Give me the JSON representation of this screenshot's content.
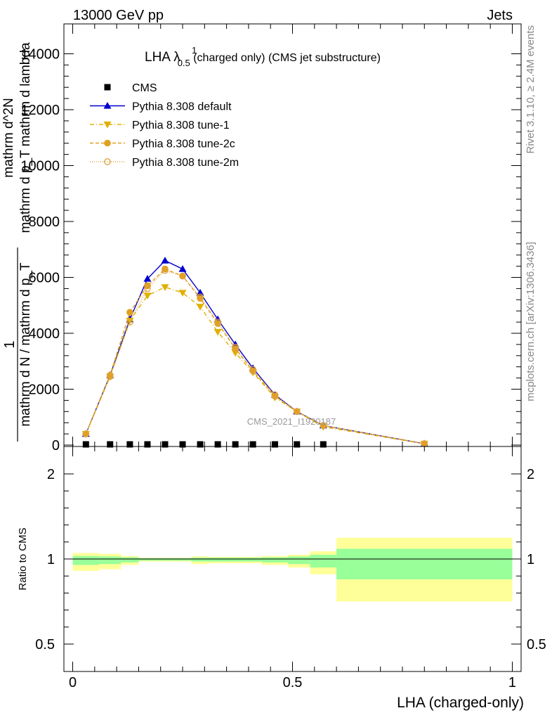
{
  "header": {
    "energy_label": "13000 GeV pp",
    "category_label": "Jets"
  },
  "side_labels": {
    "rivet": "Rivet 3.1.10, ≥ 2.4M events",
    "mcplots": "mcplots.cern.ch [arXiv:1306.3436]"
  },
  "chart_data": [
    {
      "type": "line",
      "title": "LHA λ",
      "title_sup": "1",
      "title_sub": "0.5",
      "title_suffix": " (charged only) (CMS jet substructure)",
      "ylabel_numerator": "mathrm d^2N",
      "ylabel_denominator_1": "mathrm d N / mathrm d p_T",
      "ylabel_denominator_2": "mathrm d p_T mathrm d lambda",
      "ylabel_lead": "1",
      "watermark": "CMS_2021_I1920187",
      "ylim": [
        0,
        14000
      ],
      "yticks": [
        0,
        2000,
        4000,
        6000,
        8000,
        10000,
        12000,
        14000
      ],
      "ytick_labels": [
        "0",
        "2000",
        "4000",
        "6000",
        "8000",
        "10000",
        "12000",
        "14000"
      ],
      "xlim": [
        -0.02,
        1.02
      ],
      "legend_position": "top-left",
      "series": [
        {
          "name": "CMS",
          "color": "#000000",
          "marker": "square",
          "x": [
            0.03,
            0.085,
            0.13,
            0.17,
            0.21,
            0.25,
            0.29,
            0.33,
            0.37,
            0.41,
            0.46,
            0.51,
            0.57
          ],
          "values": [
            25,
            25,
            25,
            25,
            25,
            25,
            25,
            25,
            25,
            25,
            25,
            25,
            25
          ]
        },
        {
          "name": "Pythia 8.308 default",
          "color": "#0000cc",
          "marker": "triangle-up",
          "dash": "",
          "x": [
            0.03,
            0.085,
            0.13,
            0.17,
            0.21,
            0.25,
            0.29,
            0.33,
            0.37,
            0.41,
            0.46,
            0.51,
            0.57,
            0.8
          ],
          "values": [
            400,
            2500,
            4500,
            5950,
            6600,
            6300,
            5450,
            4500,
            3600,
            2750,
            1800,
            1200,
            700,
            50
          ]
        },
        {
          "name": "Pythia 8.308 tune-1",
          "color": "#e0b000",
          "marker": "triangle-down",
          "dash": "6,3,1,3",
          "x": [
            0.03,
            0.085,
            0.13,
            0.17,
            0.21,
            0.25,
            0.29,
            0.33,
            0.37,
            0.41,
            0.46,
            0.51,
            0.57,
            0.8
          ],
          "values": [
            400,
            2450,
            4450,
            5350,
            5650,
            5450,
            4950,
            4050,
            3300,
            2600,
            1700,
            1200,
            650,
            50
          ]
        },
        {
          "name": "Pythia 8.308 tune-2c",
          "color": "#e0a020",
          "marker": "circle",
          "dash": "5,3",
          "x": [
            0.03,
            0.085,
            0.13,
            0.17,
            0.21,
            0.25,
            0.29,
            0.33,
            0.37,
            0.41,
            0.46,
            0.51,
            0.57,
            0.8
          ],
          "values": [
            400,
            2500,
            4750,
            5700,
            6300,
            6050,
            5250,
            4350,
            3450,
            2650,
            1750,
            1200,
            700,
            50
          ]
        },
        {
          "name": "Pythia 8.308 tune-2m",
          "color": "#e0a040",
          "marker": "circle-open",
          "dash": "1,2",
          "x": [
            0.03,
            0.085,
            0.13,
            0.17,
            0.21,
            0.25,
            0.29,
            0.33,
            0.37,
            0.41,
            0.46,
            0.51,
            0.57,
            0.8
          ],
          "values": [
            400,
            2450,
            4400,
            5600,
            6250,
            6050,
            5300,
            4400,
            3500,
            2700,
            1800,
            1200,
            700,
            50
          ]
        }
      ]
    },
    {
      "type": "area",
      "ylabel": "Ratio to CMS",
      "xlabel": "LHA (charged-only)",
      "ylim": [
        0.4,
        2.3
      ],
      "yticks": [
        0.5,
        1,
        2
      ],
      "ytick_labels": [
        "0.5",
        "1",
        "2"
      ],
      "xlim": [
        -0.02,
        1.02
      ],
      "xticks": [
        0,
        0.5,
        1
      ],
      "xtick_labels": [
        "0",
        "0.5",
        "1"
      ],
      "bins": [
        {
          "x0": 0.0,
          "x1": 0.06,
          "inner": [
            0.965,
            1.035
          ],
          "outer": [
            0.93,
            1.07
          ]
        },
        {
          "x0": 0.06,
          "x1": 0.11,
          "inner": [
            0.97,
            1.03
          ],
          "outer": [
            0.94,
            1.06
          ]
        },
        {
          "x0": 0.11,
          "x1": 0.15,
          "inner": [
            0.98,
            1.02
          ],
          "outer": [
            0.965,
            1.035
          ]
        },
        {
          "x0": 0.15,
          "x1": 0.19,
          "inner": [
            0.99,
            1.01
          ],
          "outer": [
            0.985,
            1.015
          ]
        },
        {
          "x0": 0.19,
          "x1": 0.23,
          "inner": [
            0.99,
            1.01
          ],
          "outer": [
            0.985,
            1.015
          ]
        },
        {
          "x0": 0.23,
          "x1": 0.27,
          "inner": [
            0.99,
            1.01
          ],
          "outer": [
            0.985,
            1.015
          ]
        },
        {
          "x0": 0.27,
          "x1": 0.31,
          "inner": [
            0.985,
            1.015
          ],
          "outer": [
            0.97,
            1.03
          ]
        },
        {
          "x0": 0.31,
          "x1": 0.35,
          "inner": [
            0.985,
            1.015
          ],
          "outer": [
            0.975,
            1.025
          ]
        },
        {
          "x0": 0.35,
          "x1": 0.39,
          "inner": [
            0.985,
            1.015
          ],
          "outer": [
            0.975,
            1.025
          ]
        },
        {
          "x0": 0.39,
          "x1": 0.43,
          "inner": [
            0.985,
            1.015
          ],
          "outer": [
            0.975,
            1.025
          ]
        },
        {
          "x0": 0.43,
          "x1": 0.49,
          "inner": [
            0.98,
            1.02
          ],
          "outer": [
            0.965,
            1.035
          ]
        },
        {
          "x0": 0.49,
          "x1": 0.54,
          "inner": [
            0.97,
            1.03
          ],
          "outer": [
            0.95,
            1.05
          ]
        },
        {
          "x0": 0.54,
          "x1": 0.6,
          "inner": [
            0.95,
            1.05
          ],
          "outer": [
            0.91,
            1.09
          ]
        },
        {
          "x0": 0.6,
          "x1": 1.0,
          "inner": [
            0.88,
            1.12
          ],
          "outer": [
            0.75,
            1.25
          ]
        }
      ]
    }
  ]
}
